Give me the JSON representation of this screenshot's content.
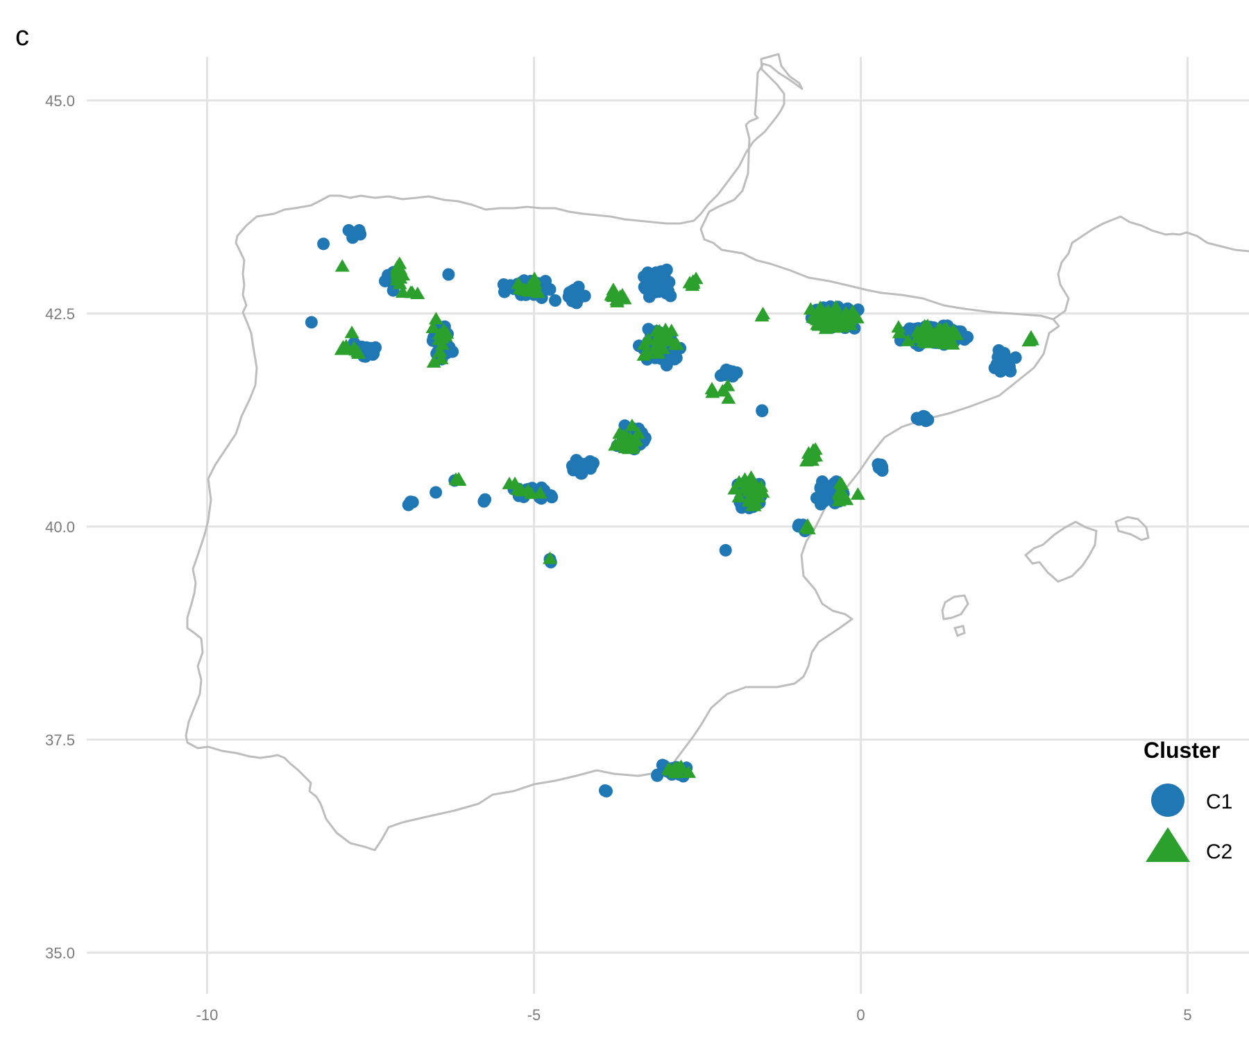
{
  "panel_label": "c",
  "chart_data": {
    "type": "scatter",
    "title": "",
    "xlabel": "",
    "ylabel": "",
    "xlim": [
      -11.8,
      5.7
    ],
    "ylim": [
      34.2,
      45.6
    ],
    "x_ticks": [
      -10,
      -5,
      0,
      5
    ],
    "y_ticks": [
      35.0,
      37.5,
      40.0,
      42.5,
      45.0
    ],
    "x_tick_labels": [
      "-10",
      "-5",
      "0",
      "5"
    ],
    "y_tick_labels": [
      "35.0",
      "37.5",
      "40.0",
      "42.5",
      "45.0"
    ],
    "grid": true,
    "legend": {
      "title": "Cluster",
      "position": "right",
      "entries": [
        {
          "label": "C1",
          "shape": "circle",
          "color": "#1f77b4"
        },
        {
          "label": "C2",
          "shape": "triangle",
          "color": "#2ca02c"
        }
      ]
    },
    "background_map": "Iberian Peninsula, Balearic Islands and southern France coastline outline",
    "series": [
      {
        "name": "C1",
        "shape": "circle",
        "color": "#1f77b4",
        "regions": [
          {
            "center": [
              -7.75,
              43.45
            ],
            "spread": [
              0.25,
              0.12
            ],
            "n": 8
          },
          {
            "center": [
              -8.2,
              43.3
            ],
            "spread": [
              0.05,
              0.05
            ],
            "n": 1
          },
          {
            "center": [
              -8.4,
              42.4
            ],
            "spread": [
              0.05,
              0.05
            ],
            "n": 1
          },
          {
            "center": [
              -7.6,
              42.05
            ],
            "spread": [
              0.35,
              0.15
            ],
            "n": 22
          },
          {
            "center": [
              -7.2,
              42.9
            ],
            "spread": [
              0.2,
              0.2
            ],
            "n": 10
          },
          {
            "center": [
              -6.4,
              42.15
            ],
            "spread": [
              0.25,
              0.3
            ],
            "n": 22
          },
          {
            "center": [
              -6.3,
              42.95
            ],
            "spread": [
              0.05,
              0.05
            ],
            "n": 1
          },
          {
            "center": [
              -5.1,
              42.8
            ],
            "spread": [
              0.55,
              0.15
            ],
            "n": 40
          },
          {
            "center": [
              -4.4,
              42.7
            ],
            "spread": [
              0.35,
              0.15
            ],
            "n": 14
          },
          {
            "center": [
              -3.1,
              42.85
            ],
            "spread": [
              0.4,
              0.22
            ],
            "n": 55
          },
          {
            "center": [
              -3.05,
              42.1
            ],
            "spread": [
              0.45,
              0.28
            ],
            "n": 70
          },
          {
            "center": [
              -2.0,
              41.8
            ],
            "spread": [
              0.3,
              0.08
            ],
            "n": 10
          },
          {
            "center": [
              -1.5,
              41.35
            ],
            "spread": [
              0.05,
              0.05
            ],
            "n": 2
          },
          {
            "center": [
              -0.45,
              42.45
            ],
            "spread": [
              0.55,
              0.2
            ],
            "n": 90
          },
          {
            "center": [
              1.1,
              42.25
            ],
            "spread": [
              0.7,
              0.18
            ],
            "n": 110
          },
          {
            "center": [
              2.2,
              41.95
            ],
            "spread": [
              0.25,
              0.25
            ],
            "n": 25
          },
          {
            "center": [
              0.95,
              41.27
            ],
            "spread": [
              0.12,
              0.06
            ],
            "n": 10
          },
          {
            "center": [
              -3.5,
              41.05
            ],
            "spread": [
              0.3,
              0.25
            ],
            "n": 35
          },
          {
            "center": [
              -4.2,
              40.7
            ],
            "spread": [
              0.35,
              0.2
            ],
            "n": 20
          },
          {
            "center": [
              -5.0,
              40.4
            ],
            "spread": [
              0.6,
              0.15
            ],
            "n": 22
          },
          {
            "center": [
              -6.2,
              40.55
            ],
            "spread": [
              0.05,
              0.05
            ],
            "n": 1
          },
          {
            "center": [
              -6.5,
              40.4
            ],
            "spread": [
              0.05,
              0.05
            ],
            "n": 1
          },
          {
            "center": [
              -6.9,
              40.27
            ],
            "spread": [
              0.1,
              0.05
            ],
            "n": 3
          },
          {
            "center": [
              -5.75,
              40.3
            ],
            "spread": [
              0.1,
              0.05
            ],
            "n": 2
          },
          {
            "center": [
              -4.75,
              39.6
            ],
            "spread": [
              0.05,
              0.05
            ],
            "n": 2
          },
          {
            "center": [
              -1.7,
              40.35
            ],
            "spread": [
              0.3,
              0.3
            ],
            "n": 60
          },
          {
            "center": [
              -0.5,
              40.4
            ],
            "spread": [
              0.3,
              0.25
            ],
            "n": 35
          },
          {
            "center": [
              0.3,
              40.7
            ],
            "spread": [
              0.2,
              0.12
            ],
            "n": 8
          },
          {
            "center": [
              -0.9,
              40.0
            ],
            "spread": [
              0.15,
              0.1
            ],
            "n": 5
          },
          {
            "center": [
              -2.05,
              39.73
            ],
            "spread": [
              0.05,
              0.05
            ],
            "n": 1
          },
          {
            "center": [
              -2.9,
              37.15
            ],
            "spread": [
              0.4,
              0.12
            ],
            "n": 25
          },
          {
            "center": [
              -3.9,
              36.9
            ],
            "spread": [
              0.08,
              0.04
            ],
            "n": 2
          }
        ]
      },
      {
        "name": "C2",
        "shape": "triangle",
        "color": "#2ca02c",
        "regions": [
          {
            "center": [
              -7.95,
              43.05
            ],
            "spread": [
              0.05,
              0.05
            ],
            "n": 1
          },
          {
            "center": [
              -7.1,
              42.95
            ],
            "spread": [
              0.25,
              0.25
            ],
            "n": 14
          },
          {
            "center": [
              -7.8,
              42.1
            ],
            "spread": [
              0.35,
              0.2
            ],
            "n": 8
          },
          {
            "center": [
              -7.95,
              42.05
            ],
            "spread": [
              0.05,
              0.05
            ],
            "n": 1
          },
          {
            "center": [
              -6.4,
              42.2
            ],
            "spread": [
              0.25,
              0.35
            ],
            "n": 12
          },
          {
            "center": [
              -6.8,
              42.75
            ],
            "spread": [
              0.15,
              0.05
            ],
            "n": 3
          },
          {
            "center": [
              -5.0,
              42.8
            ],
            "spread": [
              0.55,
              0.15
            ],
            "n": 14
          },
          {
            "center": [
              -3.8,
              42.7
            ],
            "spread": [
              0.3,
              0.2
            ],
            "n": 10
          },
          {
            "center": [
              -2.55,
              42.85
            ],
            "spread": [
              0.2,
              0.12
            ],
            "n": 6
          },
          {
            "center": [
              -3.05,
              42.15
            ],
            "spread": [
              0.4,
              0.3
            ],
            "n": 30
          },
          {
            "center": [
              -2.1,
              41.6
            ],
            "spread": [
              0.35,
              0.15
            ],
            "n": 6
          },
          {
            "center": [
              -1.45,
              42.5
            ],
            "spread": [
              0.1,
              0.05
            ],
            "n": 2
          },
          {
            "center": [
              -0.4,
              42.45
            ],
            "spread": [
              0.55,
              0.2
            ],
            "n": 45
          },
          {
            "center": [
              1.1,
              42.25
            ],
            "spread": [
              0.7,
              0.18
            ],
            "n": 45
          },
          {
            "center": [
              2.6,
              42.2
            ],
            "spread": [
              0.15,
              0.08
            ],
            "n": 4
          },
          {
            "center": [
              -3.6,
              41.0
            ],
            "spread": [
              0.35,
              0.25
            ],
            "n": 25
          },
          {
            "center": [
              -5.2,
              40.45
            ],
            "spread": [
              0.6,
              0.15
            ],
            "n": 8
          },
          {
            "center": [
              -6.2,
              40.55
            ],
            "spread": [
              0.1,
              0.05
            ],
            "n": 3
          },
          {
            "center": [
              -4.75,
              39.62
            ],
            "spread": [
              0.05,
              0.05
            ],
            "n": 1
          },
          {
            "center": [
              -1.7,
              40.4
            ],
            "spread": [
              0.3,
              0.3
            ],
            "n": 25
          },
          {
            "center": [
              -0.7,
              40.85
            ],
            "spread": [
              0.3,
              0.15
            ],
            "n": 8
          },
          {
            "center": [
              -0.3,
              40.4
            ],
            "spread": [
              0.3,
              0.2
            ],
            "n": 10
          },
          {
            "center": [
              -0.8,
              40.0
            ],
            "spread": [
              0.1,
              0.05
            ],
            "n": 3
          },
          {
            "center": [
              -2.9,
              37.15
            ],
            "spread": [
              0.4,
              0.12
            ],
            "n": 12
          }
        ]
      }
    ]
  }
}
